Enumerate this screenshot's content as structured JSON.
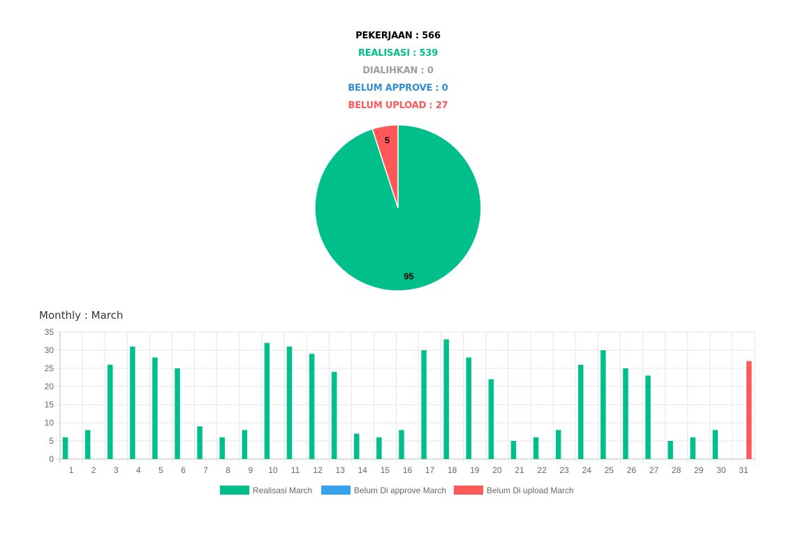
{
  "summary": {
    "pekerjaan": "PEKERJAAN : 566",
    "realisasi": "REALISASI : 539",
    "dialihkan": "DIALIHKAN : 0",
    "belum_approve": "BELUM APPROVE : 0",
    "belum_upload": "BELUM UPLOAD : 27"
  },
  "colors": {
    "black": "#000000",
    "green": "#00bf8a",
    "gray": "#9e9e9e",
    "blue": "#2f8fcf",
    "red": "#ff5858",
    "legend_blue": "#36a2eb"
  },
  "monthly_title": "Monthly : March",
  "chart_data": [
    {
      "type": "pie",
      "labels": [
        "",
        ""
      ],
      "values": [
        95,
        5
      ],
      "colors": [
        "#00bf8a",
        "#ff5858"
      ],
      "data_labels": [
        "95",
        "5"
      ]
    },
    {
      "type": "bar",
      "categories": [
        "1",
        "2",
        "3",
        "4",
        "5",
        "6",
        "7",
        "8",
        "9",
        "10",
        "11",
        "12",
        "13",
        "14",
        "15",
        "16",
        "17",
        "18",
        "19",
        "20",
        "21",
        "22",
        "23",
        "24",
        "25",
        "26",
        "27",
        "28",
        "29",
        "30",
        "31"
      ],
      "series": [
        {
          "name": "Realisasi March",
          "color": "#00bf8a",
          "values": [
            6,
            8,
            26,
            31,
            28,
            25,
            9,
            6,
            8,
            32,
            31,
            29,
            24,
            7,
            6,
            8,
            30,
            33,
            28,
            22,
            5,
            6,
            8,
            26,
            30,
            25,
            23,
            5,
            6,
            8,
            0
          ]
        },
        {
          "name": "Belum Di approve March",
          "color": "#36a2eb",
          "values": [
            0,
            0,
            0,
            0,
            0,
            0,
            0,
            0,
            0,
            0,
            0,
            0,
            0,
            0,
            0,
            0,
            0,
            0,
            0,
            0,
            0,
            0,
            0,
            0,
            0,
            0,
            0,
            0,
            0,
            0,
            0
          ]
        },
        {
          "name": "Belum Di upload March",
          "color": "#ff5858",
          "values": [
            0,
            0,
            0,
            0,
            0,
            0,
            0,
            0,
            0,
            0,
            0,
            0,
            0,
            0,
            0,
            0,
            0,
            0,
            0,
            0,
            0,
            0,
            0,
            0,
            0,
            0,
            0,
            0,
            0,
            0,
            27
          ]
        }
      ],
      "ylim": [
        0,
        35
      ],
      "yticks": [
        0,
        5,
        10,
        15,
        20,
        25,
        30,
        35
      ],
      "grid": true,
      "legend": "bottom"
    }
  ]
}
